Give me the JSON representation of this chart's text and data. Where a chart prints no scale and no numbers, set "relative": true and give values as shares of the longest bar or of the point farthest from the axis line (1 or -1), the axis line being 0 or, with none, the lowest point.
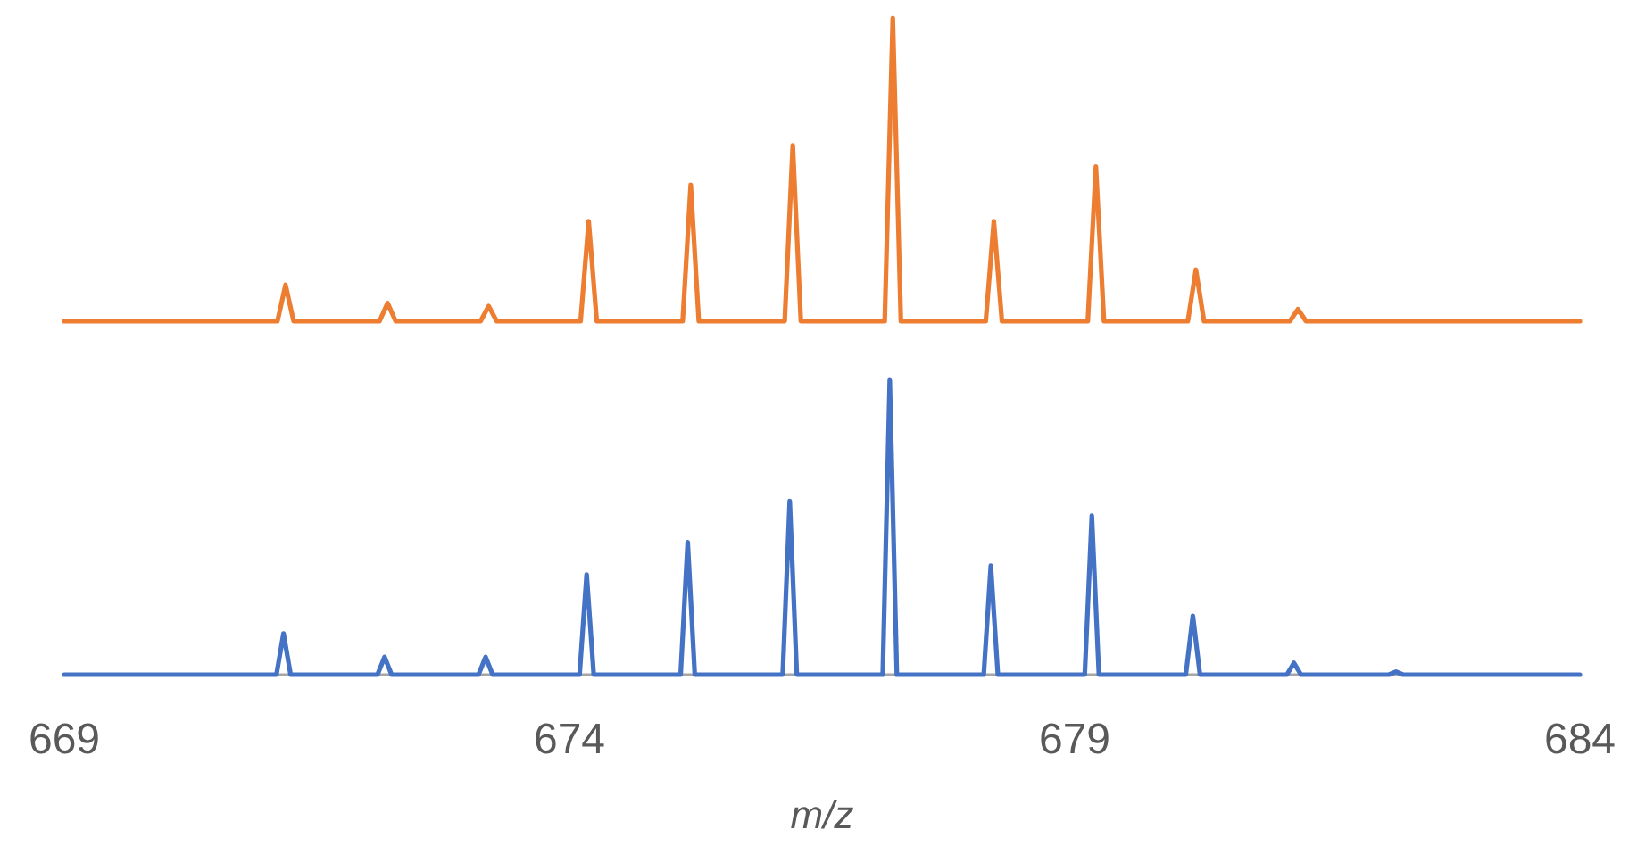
{
  "chart_data": [
    {
      "type": "line",
      "relative": true,
      "xlim": [
        669,
        684
      ],
      "tick_labels": false,
      "x": [
        669,
        671.11,
        671.19,
        671.27,
        672.12,
        672.2,
        672.28,
        673.12,
        673.2,
        673.28,
        674.11,
        674.19,
        674.27,
        675.12,
        675.2,
        675.28,
        676.13,
        676.21,
        676.29,
        677.12,
        677.2,
        677.28,
        678.12,
        678.2,
        678.28,
        679.13,
        679.21,
        679.29,
        680.12,
        680.2,
        680.28,
        681.13,
        681.21,
        681.29,
        684
      ],
      "series": [
        {
          "color": "#ed7d31",
          "values": [
            0,
            0,
            0.12,
            0,
            0,
            0.06,
            0,
            0,
            0.05,
            0,
            0,
            0.33,
            0,
            0,
            0.45,
            0,
            0,
            0.58,
            0,
            0,
            1,
            0,
            0,
            0.33,
            0,
            0,
            0.51,
            0,
            0,
            0.17,
            0,
            0,
            0.04,
            0,
            0
          ]
        }
      ]
    },
    {
      "type": "line",
      "relative": true,
      "xlim": [
        669,
        684
      ],
      "xticks": [
        669,
        674,
        679,
        684
      ],
      "xlabel": "m/z",
      "tick_labels": "x",
      "x": [
        669,
        671.1,
        671.17,
        671.24,
        672.1,
        672.17,
        672.24,
        673.1,
        673.17,
        673.24,
        674.1,
        674.17,
        674.24,
        675.1,
        675.17,
        675.24,
        676.11,
        676.18,
        676.25,
        677.1,
        677.17,
        677.24,
        678.1,
        678.17,
        678.24,
        679.1,
        679.17,
        679.24,
        680.1,
        680.17,
        680.24,
        681.1,
        681.17,
        681.24,
        682.11,
        682.18,
        682.25,
        684
      ],
      "series": [
        {
          "color": "#4472c4",
          "values": [
            0,
            0,
            0.14,
            0,
            0,
            0.06,
            0,
            0,
            0.06,
            0,
            0,
            0.34,
            0,
            0,
            0.45,
            0,
            0,
            0.59,
            0,
            0,
            1,
            0,
            0,
            0.37,
            0,
            0,
            0.54,
            0,
            0,
            0.2,
            0,
            0,
            0.04,
            0,
            0,
            0.01,
            0,
            0
          ]
        }
      ]
    }
  ]
}
